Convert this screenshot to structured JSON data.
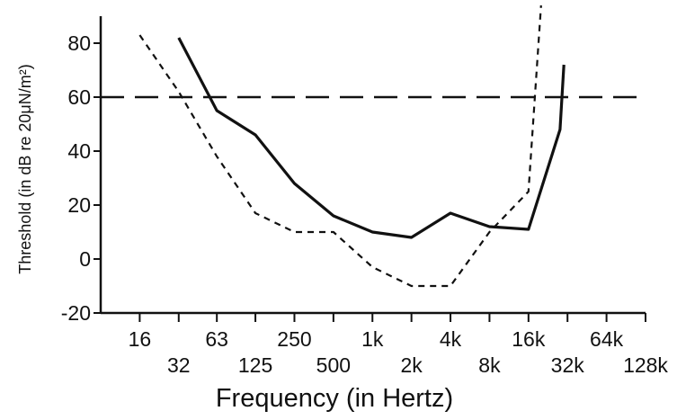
{
  "chart_data": {
    "type": "line",
    "xlabel": "Frequency (in Hertz)",
    "ylabel": "Threshold (in dB re 20μN/m²)",
    "x_scale": "log2",
    "xlim": [
      8,
      128000
    ],
    "ylim": [
      -20,
      90
    ],
    "x_ticks": [
      16,
      32,
      63,
      125,
      250,
      500,
      1000,
      2000,
      4000,
      8000,
      16000,
      32000,
      64000,
      128000
    ],
    "x_tick_labels": [
      "16",
      "32",
      "63",
      "125",
      "250",
      "500",
      "1k",
      "2k",
      "4k",
      "8k",
      "16k",
      "32k",
      "64k",
      "128k"
    ],
    "y_ticks": [
      -20,
      0,
      20,
      40,
      60,
      80
    ],
    "y_tick_labels": [
      "-20",
      "0",
      "20",
      "40",
      "60",
      "80"
    ],
    "grid": false,
    "legend": "none",
    "series": [
      {
        "style": "solid",
        "color": "#111111",
        "points": [
          [
            32,
            82
          ],
          [
            63,
            55
          ],
          [
            125,
            46
          ],
          [
            250,
            28
          ],
          [
            500,
            16
          ],
          [
            1000,
            10
          ],
          [
            2000,
            8
          ],
          [
            4000,
            17
          ],
          [
            8000,
            12
          ],
          [
            16000,
            11
          ],
          [
            28000,
            48
          ],
          [
            30000,
            72
          ]
        ]
      },
      {
        "style": "dashed",
        "color": "#111111",
        "points": [
          [
            16,
            83
          ],
          [
            32,
            62
          ],
          [
            63,
            38
          ],
          [
            125,
            17
          ],
          [
            250,
            10
          ],
          [
            500,
            10
          ],
          [
            1000,
            -3
          ],
          [
            2000,
            -10
          ],
          [
            4000,
            -10
          ],
          [
            8000,
            10
          ],
          [
            16000,
            25
          ],
          [
            20000,
            94
          ]
        ]
      },
      {
        "style": "long-dash",
        "color": "#111111",
        "points": [
          [
            8,
            60
          ],
          [
            128000,
            60
          ]
        ]
      }
    ]
  }
}
